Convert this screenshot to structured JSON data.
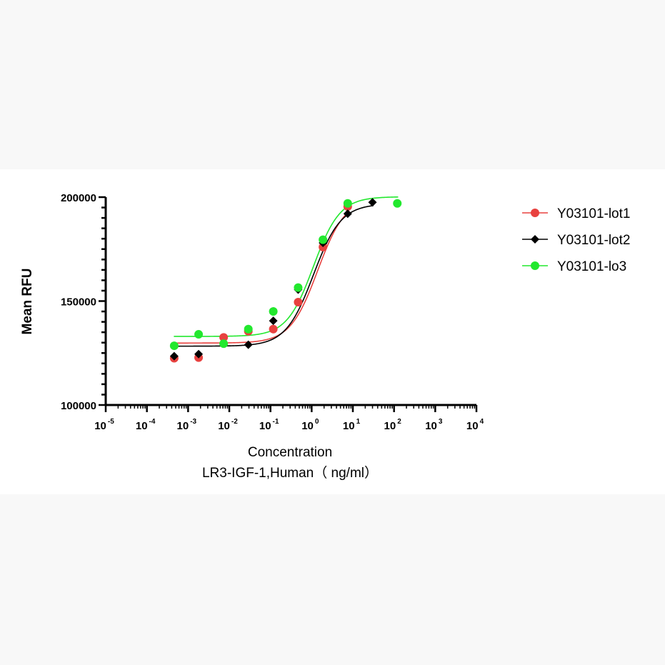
{
  "chart_data": {
    "type": "scatter",
    "title": "",
    "xlabel": [
      "Concentration",
      "LR3-IGF-1,Human（ ng/ml）"
    ],
    "ylabel": "Mean RFU",
    "xscale": "log",
    "xlim": [
      1e-05,
      10000
    ],
    "ylim": [
      100000,
      200000
    ],
    "yticks": [
      100000,
      150000,
      200000
    ],
    "ytick_labels": [
      "100000",
      "150000",
      "200000"
    ],
    "xticks": [
      {
        "base": "10",
        "exp": "-5"
      },
      {
        "base": "10",
        "exp": "-4"
      },
      {
        "base": "10",
        "exp": "-3"
      },
      {
        "base": "10",
        "exp": "-2"
      },
      {
        "base": "10",
        "exp": "-1"
      },
      {
        "base": "10",
        "exp": "0"
      },
      {
        "base": "10",
        "exp": "1"
      },
      {
        "base": "10",
        "exp": "2"
      },
      {
        "base": "10",
        "exp": "3"
      },
      {
        "base": "10",
        "exp": "4"
      }
    ],
    "legend_position": "right",
    "grid": false,
    "series": [
      {
        "name": "Y03101-lot1",
        "color": "#e8413f",
        "marker": "circle",
        "x": [
          0.00046,
          0.0018,
          0.0073,
          0.029,
          0.117,
          0.47,
          1.88,
          7.5
        ],
        "y": [
          122500,
          122800,
          132500,
          135500,
          136500,
          149500,
          176000,
          195500
        ],
        "fit": {
          "bottom": 129800,
          "top": 199600,
          "ec50": 1.4,
          "hill": 1.3
        }
      },
      {
        "name": "Y03101-lot2",
        "color": "#000000",
        "marker": "diamond",
        "x": [
          0.00046,
          0.0018,
          0.0073,
          0.029,
          0.117,
          0.47,
          1.88,
          7.5,
          30
        ],
        "y": [
          123500,
          124500,
          129500,
          129000,
          140500,
          155500,
          178000,
          192000,
          197500
        ],
        "fit": {
          "bottom": 128300,
          "top": 196800,
          "ec50": 1.1,
          "hill": 1.3
        }
      },
      {
        "name": "Y03101-lo3",
        "color": "#22e82e",
        "marker": "circle",
        "x": [
          0.00046,
          0.0018,
          0.0073,
          0.029,
          0.117,
          0.47,
          1.88,
          7.5,
          120
        ],
        "y": [
          128500,
          134000,
          129500,
          136500,
          145000,
          156500,
          179500,
          197000,
          197000
        ],
        "fit": {
          "bottom": 133000,
          "top": 200200,
          "ec50": 1.1,
          "hill": 1.35
        }
      }
    ]
  }
}
